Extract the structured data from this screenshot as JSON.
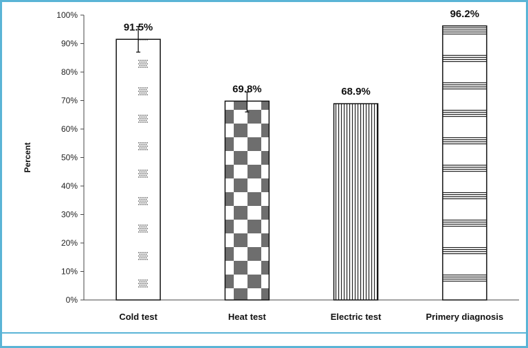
{
  "chart_data": {
    "type": "bar",
    "title": "",
    "xlabel": "",
    "ylabel": "Percent",
    "ylim": [
      0,
      100
    ],
    "yticks": [
      "0%",
      "10%",
      "20%",
      "30%",
      "40%",
      "50%",
      "60%",
      "70%",
      "80%",
      "90%",
      "100%"
    ],
    "categories": [
      "Cold test",
      "Heat test",
      "Electric test",
      "Primery diagnosis"
    ],
    "values": [
      91.5,
      69.8,
      68.9,
      96.2
    ],
    "value_labels": [
      "91.5%",
      "69.8%",
      "68.9%",
      "96.2%"
    ],
    "error_high": [
      96,
      73,
      null,
      null
    ],
    "error_low": [
      87,
      66,
      null,
      null
    ],
    "patterns": [
      "dots",
      "checker",
      "vertical-lines",
      "horizontal-lines"
    ],
    "colors": {
      "bar_outline": "#111111",
      "frame": "#5ab4d6",
      "pattern": "#333333"
    },
    "grid": false,
    "legend": "none"
  }
}
